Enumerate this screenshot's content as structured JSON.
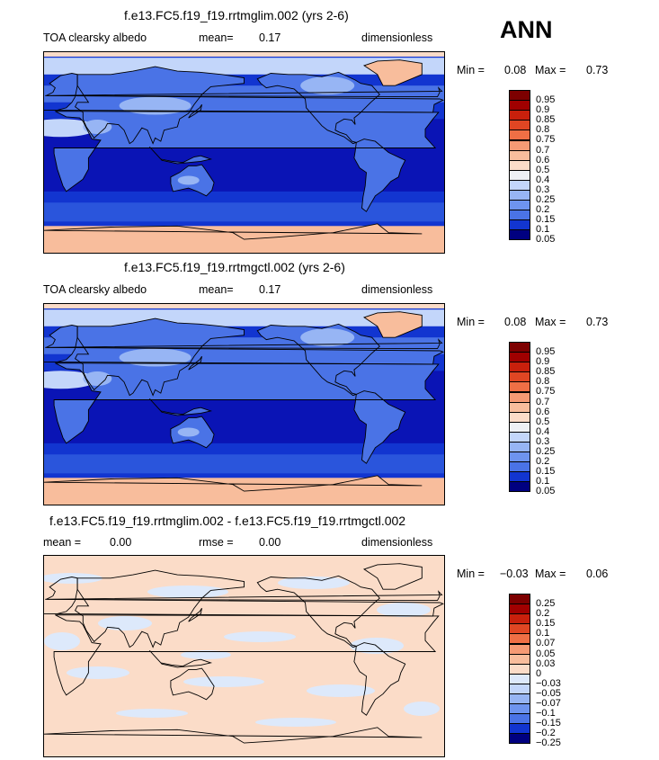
{
  "season": "ANN",
  "palette": {
    "albedo": [
      "#000080",
      "#0a14b5",
      "#1235d0",
      "#2a55dc",
      "#4a73e6",
      "#6e94ef",
      "#97b5f4",
      "#c3d6fa",
      "#eef1f5",
      "#fbdcc8",
      "#f8bd9c",
      "#f59a74",
      "#ef6f45",
      "#e04623",
      "#c8200c",
      "#a00000",
      "#7d0000"
    ],
    "diff": [
      "#000080",
      "#0a14b5",
      "#1235d0",
      "#2a55dc",
      "#4a73e6",
      "#6e94ef",
      "#97b5f4",
      "#c3d6fa",
      "#dde9fb",
      "#fbdcc8",
      "#f8bd9c",
      "#f59a74",
      "#ef6f45",
      "#e04623",
      "#c8200c",
      "#a00000",
      "#7d0000"
    ]
  },
  "panels": [
    {
      "id": "lim",
      "title": "f.e13.FC5.f19_f19.rrtmglim.002 (yrs 2-6)",
      "left_label": "TOA clearsky albedo",
      "stat1_label": "mean=",
      "stat1_value": "0.17",
      "units": "dimensionless",
      "min_label": "Min =",
      "min_value": "0.08",
      "max_label": "Max =",
      "max_value": "0.73",
      "kind": "albedo",
      "colorbar_labels": [
        "0.95",
        "0.9",
        "0.85",
        "0.8",
        "0.75",
        "0.7",
        "0.6",
        "0.5",
        "0.4",
        "0.3",
        "0.25",
        "0.2",
        "0.15",
        "0.1",
        "0.05"
      ]
    },
    {
      "id": "ctl",
      "title": "f.e13.FC5.f19_f19.rrtmgctl.002 (yrs 2-6)",
      "left_label": "TOA clearsky albedo",
      "stat1_label": "mean=",
      "stat1_value": "0.17",
      "units": "dimensionless",
      "min_label": "Min =",
      "min_value": "0.08",
      "max_label": "Max =",
      "max_value": "0.73",
      "kind": "albedo",
      "colorbar_labels": [
        "0.95",
        "0.9",
        "0.85",
        "0.8",
        "0.75",
        "0.7",
        "0.6",
        "0.5",
        "0.4",
        "0.3",
        "0.25",
        "0.2",
        "0.15",
        "0.1",
        "0.05"
      ]
    },
    {
      "id": "diff",
      "title": "f.e13.FC5.f19_f19.rrtmglim.002 - f.e13.FC5.f19_f19.rrtmgctl.002",
      "left_label": "mean =",
      "left_value": "0.00",
      "stat1_label": "rmse =",
      "stat1_value": "0.00",
      "units": "dimensionless",
      "min_label": "Min =",
      "min_value": "−0.03",
      "max_label": "Max =",
      "max_value": "0.06",
      "kind": "diff",
      "colorbar_labels": [
        "0.25",
        "0.2",
        "0.15",
        "0.1",
        "0.07",
        "0.05",
        "0.03",
        "0",
        "−0.03",
        "−0.05",
        "−0.07",
        "−0.1",
        "−0.15",
        "−0.2",
        "−0.25"
      ]
    }
  ],
  "chart_data": [
    {
      "type": "heatmap",
      "title": "f.e13.FC5.f19_f19.rrtmglim.002 (yrs 2-6)",
      "variable": "TOA clearsky albedo",
      "units": "dimensionless",
      "mean": 0.17,
      "min": 0.08,
      "max": 0.73,
      "levels": [
        0.05,
        0.1,
        0.15,
        0.2,
        0.25,
        0.3,
        0.4,
        0.5,
        0.6,
        0.7,
        0.75,
        0.8,
        0.85,
        0.9,
        0.95
      ]
    },
    {
      "type": "heatmap",
      "title": "f.e13.FC5.f19_f19.rrtmgctl.002 (yrs 2-6)",
      "variable": "TOA clearsky albedo",
      "units": "dimensionless",
      "mean": 0.17,
      "min": 0.08,
      "max": 0.73,
      "levels": [
        0.05,
        0.1,
        0.15,
        0.2,
        0.25,
        0.3,
        0.4,
        0.5,
        0.6,
        0.7,
        0.75,
        0.8,
        0.85,
        0.9,
        0.95
      ]
    },
    {
      "type": "heatmap",
      "title": "f.e13.FC5.f19_f19.rrtmglim.002 - f.e13.FC5.f19_f19.rrtmgctl.002",
      "units": "dimensionless",
      "mean": 0.0,
      "rmse": 0.0,
      "min": -0.03,
      "max": 0.06,
      "levels": [
        -0.25,
        -0.2,
        -0.15,
        -0.1,
        -0.07,
        -0.05,
        -0.03,
        0,
        0.03,
        0.05,
        0.07,
        0.1,
        0.15,
        0.2,
        0.25
      ]
    }
  ]
}
